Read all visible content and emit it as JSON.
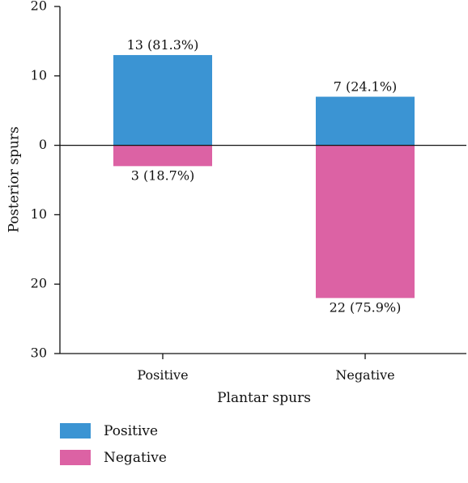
{
  "chart_data": {
    "type": "bar",
    "xlabel": "Plantar spurs",
    "ylabel": "Posterior spurs",
    "categories": [
      "Positive",
      "Negative"
    ],
    "series": [
      {
        "name": "Positive",
        "values": [
          13,
          7
        ],
        "labels": [
          "13 (81.3%)",
          "7 (24.1%)"
        ],
        "direction": "up"
      },
      {
        "name": "Negative",
        "values": [
          3,
          22
        ],
        "labels": [
          "3 (18.7%)",
          "22 (75.9%)"
        ],
        "direction": "down"
      }
    ],
    "ylim": [
      -30,
      20
    ],
    "y_ticks": [
      {
        "value": 20,
        "label": "20"
      },
      {
        "value": 10,
        "label": "10"
      },
      {
        "value": 0,
        "label": "0"
      },
      {
        "value": -10,
        "label": "10"
      },
      {
        "value": -20,
        "label": "20"
      },
      {
        "value": -30,
        "label": "30"
      }
    ],
    "grid": false,
    "legend_position": "bottom-left"
  },
  "colors": {
    "positive": "#3b94d3",
    "negative": "#dc62a4",
    "axis": "#111111"
  }
}
